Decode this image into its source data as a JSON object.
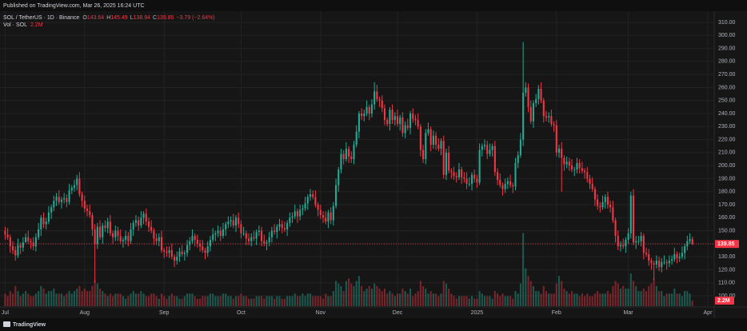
{
  "chart_data": {
    "type": "candlestick",
    "published": "Published on TradingView.com, Mar 26, 2025 16:24 UTC",
    "symbol_title": "SOL / TetherUS · 1D · Binance",
    "ohlc_letters": [
      "O",
      "H",
      "L",
      "C"
    ],
    "change": "−3.79 (−2.64%)",
    "volume_title": "Vol · SOL",
    "volume_value_label": "2.2M",
    "branding": "TradingView",
    "up_color": "#22ab94",
    "down_color": "#f23645",
    "grid": true,
    "xlim": [
      -2,
      276.5
    ],
    "xticks": [
      {
        "value": 0,
        "label": "Jul"
      },
      {
        "value": 31,
        "label": "Aug"
      },
      {
        "value": 62,
        "label": "Sep"
      },
      {
        "value": 92,
        "label": "Oct"
      },
      {
        "value": 123,
        "label": "Nov"
      },
      {
        "value": 153,
        "label": "Dec"
      },
      {
        "value": 184,
        "label": "2025"
      },
      {
        "value": 215,
        "label": "Feb"
      },
      {
        "value": 243,
        "label": "Mar"
      },
      {
        "value": 274,
        "label": "Apr"
      }
    ],
    "ylim": [
      92,
      318
    ],
    "yticks": [
      {
        "value": 100,
        "label": "100.00"
      },
      {
        "value": 110,
        "label": "110.00"
      },
      {
        "value": 120,
        "label": "120.00"
      },
      {
        "value": 130,
        "label": "130.00"
      },
      {
        "value": 140,
        "label": "140.00"
      },
      {
        "value": 150,
        "label": "150.00"
      },
      {
        "value": 160,
        "label": "160.00"
      },
      {
        "value": 170,
        "label": "170.00"
      },
      {
        "value": 180,
        "label": "180.00"
      },
      {
        "value": 190,
        "label": "190.00"
      },
      {
        "value": 200,
        "label": "200.00"
      },
      {
        "value": 210,
        "label": "210.00"
      },
      {
        "value": 220,
        "label": "220.00"
      },
      {
        "value": 230,
        "label": "230.00"
      },
      {
        "value": 240,
        "label": "240.00"
      },
      {
        "value": 250,
        "label": "250.00"
      },
      {
        "value": 260,
        "label": "260.00"
      },
      {
        "value": 270,
        "label": "270.00"
      },
      {
        "value": 280,
        "label": "280.00"
      },
      {
        "value": 290,
        "label": "290.00"
      },
      {
        "value": 300,
        "label": "300.00"
      },
      {
        "value": 310,
        "label": "310.00"
      }
    ],
    "volume_ylim": [
      0,
      35
    ],
    "open": [
      150,
      147,
      145,
      138,
      135,
      131,
      139,
      137,
      141,
      145,
      142,
      141,
      138,
      145,
      151,
      160,
      155,
      157,
      164,
      168,
      173,
      176,
      172,
      174,
      175,
      172,
      181,
      183,
      185,
      190,
      178,
      173,
      167,
      165,
      162,
      151,
      140,
      153,
      145,
      154,
      152,
      157,
      148,
      145,
      150,
      146,
      142,
      143,
      146,
      142,
      151,
      156,
      158,
      154,
      160,
      163,
      157,
      153,
      150,
      144,
      142,
      145,
      135,
      134,
      133,
      135,
      130,
      127,
      130,
      134,
      132,
      133,
      139,
      142,
      146,
      143,
      140,
      138,
      135,
      133,
      138,
      143,
      147,
      148,
      150,
      146,
      151,
      155,
      157,
      158,
      154,
      160,
      155,
      148,
      148,
      144,
      142,
      145,
      144,
      149,
      150,
      142,
      140,
      141,
      145,
      150,
      149,
      153,
      155,
      152,
      151,
      156,
      160,
      161,
      165,
      161,
      166,
      167,
      171,
      176,
      178,
      176,
      170,
      166,
      162,
      160,
      157,
      164,
      158,
      169,
      185,
      197,
      209,
      205,
      213,
      207,
      205,
      216,
      226,
      240,
      238,
      240,
      245,
      240,
      247,
      257,
      251,
      250,
      244,
      235,
      232,
      243,
      235,
      238,
      232,
      237,
      225,
      231,
      229,
      240,
      236,
      235,
      230,
      212,
      205,
      225,
      228,
      216,
      223,
      216,
      213,
      219,
      193,
      210,
      196,
      195,
      192,
      191,
      197,
      191,
      190,
      186,
      186,
      193,
      190,
      187,
      212,
      215,
      216,
      209,
      212,
      215,
      195,
      189,
      185,
      182,
      186,
      188,
      185,
      184,
      202,
      208,
      220,
      256,
      260,
      245,
      234,
      248,
      251,
      259,
      250,
      238,
      237,
      238,
      232,
      231,
      210,
      213,
      206,
      201,
      203,
      200,
      197,
      197,
      202,
      198,
      196,
      195,
      190,
      186,
      182,
      174,
      169,
      168,
      172,
      176,
      170,
      168,
      158,
      146,
      138,
      139,
      138,
      143,
      148,
      177,
      141,
      142,
      142,
      146,
      133,
      132,
      127,
      125,
      124,
      127,
      122,
      126,
      126,
      125,
      127,
      128,
      132,
      129,
      130,
      133,
      138,
      142,
      143.64
    ],
    "high": [
      153,
      152,
      147,
      142,
      138,
      144,
      141,
      145,
      148,
      150,
      144,
      145,
      148,
      156,
      162,
      164,
      160,
      169,
      170,
      177,
      179,
      181,
      176,
      179,
      178,
      186,
      185,
      189,
      193,
      195,
      180,
      177,
      170,
      170,
      164,
      155,
      156,
      158,
      156,
      158,
      160,
      162,
      150,
      154,
      153,
      151,
      145,
      150,
      149,
      156,
      158,
      162,
      161,
      165,
      165,
      167,
      160,
      158,
      152,
      148,
      148,
      150,
      137,
      138,
      138,
      140,
      132,
      134,
      137,
      139,
      135,
      143,
      145,
      151,
      148,
      147,
      143,
      143,
      137,
      142,
      146,
      152,
      150,
      154,
      153,
      156,
      157,
      161,
      161,
      163,
      162,
      164,
      158,
      153,
      150,
      148,
      148,
      150,
      151,
      154,
      153,
      147,
      143,
      149,
      153,
      155,
      155,
      159,
      158,
      157,
      158,
      164,
      164,
      170,
      167,
      170,
      170,
      176,
      178,
      182,
      181,
      181,
      172,
      170,
      165,
      165,
      166,
      168,
      172,
      190,
      199,
      213,
      212,
      218,
      215,
      211,
      219,
      231,
      242,
      244,
      243,
      250,
      247,
      251,
      264,
      262,
      253,
      254,
      247,
      237,
      245,
      247,
      241,
      243,
      239,
      241,
      234,
      236,
      242,
      244,
      239,
      240,
      232,
      216,
      228,
      233,
      230,
      227,
      226,
      221,
      221,
      223,
      213,
      215,
      198,
      199,
      195,
      202,
      199,
      195,
      195,
      191,
      195,
      197,
      193,
      217,
      217,
      220,
      219,
      217,
      217,
      219,
      198,
      194,
      187,
      190,
      191,
      193,
      187,
      206,
      211,
      225,
      295,
      264,
      263,
      250,
      250,
      255,
      262,
      264,
      252,
      242,
      241,
      243,
      234,
      235,
      216,
      218,
      208,
      207,
      206,
      205,
      199,
      206,
      205,
      203,
      198,
      199,
      193,
      191,
      184,
      178,
      172,
      177,
      178,
      180,
      173,
      173,
      160,
      150,
      142,
      144,
      145,
      152,
      180,
      182,
      146,
      146,
      149,
      148,
      137,
      136,
      129,
      127,
      131,
      130,
      129,
      131,
      128,
      131,
      131,
      137,
      134,
      133,
      138,
      140,
      146,
      148,
      145.49
    ],
    "low": [
      143,
      143,
      133,
      132,
      127,
      129,
      132,
      134,
      141,
      140,
      136,
      135,
      134,
      143,
      146,
      152,
      151,
      155,
      159,
      165,
      169,
      170,
      167,
      171,
      168,
      170,
      178,
      180,
      181,
      176,
      168,
      164,
      161,
      160,
      146,
      110,
      136,
      143,
      140,
      149,
      148,
      146,
      140,
      142,
      142,
      140,
      137,
      140,
      138,
      140,
      146,
      153,
      150,
      152,
      155,
      154,
      149,
      148,
      139,
      139,
      138,
      133,
      129,
      130,
      129,
      128,
      122,
      124,
      126,
      130,
      127,
      130,
      135,
      140,
      138,
      137,
      134,
      133,
      128,
      130,
      134,
      141,
      142,
      145,
      142,
      144,
      146,
      152,
      153,
      152,
      149,
      152,
      144,
      146,
      139,
      139,
      138,
      142,
      139,
      146,
      138,
      138,
      135,
      138,
      141,
      147,
      144,
      150,
      148,
      149,
      146,
      153,
      156,
      159,
      156,
      158,
      162,
      165,
      166,
      173,
      174,
      168,
      161,
      159,
      156,
      155,
      152,
      155,
      154,
      167,
      180,
      194,
      201,
      203,
      202,
      202,
      201,
      214,
      221,
      235,
      234,
      238,
      235,
      237,
      243,
      249,
      245,
      241,
      231,
      230,
      227,
      232,
      231,
      230,
      227,
      222,
      221,
      227,
      224,
      233,
      231,
      228,
      207,
      202,
      201,
      223,
      211,
      213,
      212,
      211,
      208,
      190,
      189,
      194,
      190,
      189,
      187,
      189,
      186,
      187,
      182,
      184,
      181,
      187,
      183,
      185,
      207,
      212,
      205,
      207,
      207,
      192,
      185,
      183,
      177,
      179,
      182,
      183,
      179,
      181,
      198,
      206,
      215,
      253,
      241,
      232,
      229,
      245,
      247,
      248,
      233,
      234,
      233,
      230,
      226,
      207,
      206,
      180,
      196,
      198,
      196,
      195,
      192,
      194,
      194,
      194,
      190,
      187,
      182,
      180,
      169,
      166,
      164,
      166,
      167,
      167,
      164,
      156,
      141,
      135,
      134,
      136,
      133,
      140,
      144,
      139,
      136,
      139,
      138,
      128,
      130,
      123,
      120,
      112,
      121,
      119,
      118,
      124,
      120,
      122,
      124,
      126,
      125,
      126,
      128,
      128,
      135,
      140,
      138.94
    ],
    "close": [
      147,
      145,
      138,
      135,
      131,
      139,
      137,
      141,
      145,
      142,
      141,
      138,
      145,
      151,
      160,
      155,
      157,
      164,
      168,
      173,
      176,
      172,
      174,
      175,
      172,
      181,
      183,
      185,
      190,
      178,
      173,
      167,
      165,
      162,
      151,
      140,
      153,
      145,
      154,
      152,
      157,
      148,
      145,
      150,
      146,
      142,
      143,
      146,
      142,
      151,
      156,
      158,
      154,
      160,
      163,
      157,
      153,
      150,
      144,
      142,
      145,
      135,
      134,
      133,
      135,
      130,
      127,
      130,
      134,
      132,
      133,
      139,
      142,
      146,
      143,
      140,
      138,
      135,
      133,
      138,
      143,
      147,
      148,
      150,
      146,
      151,
      155,
      157,
      158,
      154,
      160,
      155,
      148,
      148,
      144,
      142,
      145,
      144,
      149,
      150,
      142,
      140,
      141,
      145,
      150,
      149,
      153,
      155,
      152,
      151,
      156,
      160,
      161,
      165,
      161,
      166,
      167,
      171,
      176,
      178,
      176,
      170,
      166,
      162,
      160,
      157,
      164,
      158,
      169,
      185,
      197,
      209,
      205,
      213,
      207,
      205,
      216,
      226,
      240,
      238,
      240,
      245,
      240,
      247,
      257,
      251,
      250,
      244,
      235,
      232,
      243,
      235,
      238,
      232,
      237,
      225,
      231,
      229,
      240,
      236,
      235,
      230,
      212,
      205,
      225,
      228,
      216,
      223,
      216,
      213,
      219,
      193,
      210,
      196,
      195,
      192,
      191,
      197,
      191,
      190,
      186,
      186,
      193,
      190,
      187,
      212,
      215,
      216,
      209,
      212,
      215,
      195,
      189,
      185,
      182,
      186,
      188,
      185,
      184,
      202,
      208,
      220,
      256,
      260,
      245,
      234,
      248,
      251,
      259,
      250,
      238,
      237,
      238,
      232,
      231,
      210,
      213,
      206,
      201,
      203,
      200,
      197,
      197,
      202,
      198,
      196,
      195,
      190,
      186,
      182,
      174,
      169,
      168,
      172,
      176,
      170,
      168,
      158,
      146,
      138,
      139,
      138,
      143,
      148,
      177,
      141,
      142,
      142,
      146,
      133,
      132,
      127,
      125,
      124,
      127,
      122,
      126,
      126,
      125,
      127,
      128,
      132,
      129,
      130,
      133,
      138,
      142,
      143.64,
      139.85
    ],
    "volume": [
      5,
      4,
      6,
      5,
      8,
      6,
      4,
      5,
      6,
      5,
      4,
      4,
      5,
      6,
      8,
      7,
      5,
      6,
      6,
      7,
      5,
      5,
      5,
      4,
      5,
      6,
      5,
      6,
      7,
      8,
      6,
      7,
      6,
      6,
      8,
      10.5,
      9,
      7,
      6,
      5,
      4,
      5,
      4,
      5,
      5,
      5,
      4,
      3,
      4,
      5,
      6,
      5,
      5,
      6,
      5,
      4,
      4,
      5,
      5,
      4,
      3,
      5,
      4,
      3,
      4,
      5,
      4,
      4,
      3,
      3,
      4,
      5,
      5,
      5,
      4,
      3,
      3,
      4,
      4,
      4,
      5,
      5,
      4,
      4,
      4,
      5,
      5,
      4,
      4,
      3,
      4,
      4,
      5,
      4,
      4,
      3,
      3,
      3,
      4,
      4,
      4,
      3,
      4,
      4,
      4,
      3,
      4,
      4,
      3,
      3,
      4,
      4,
      4,
      5,
      4,
      4,
      5,
      4,
      5,
      5,
      4,
      4,
      4,
      4,
      3,
      5,
      4,
      4,
      6,
      10,
      9,
      8,
      6,
      10,
      11,
      9,
      8,
      10,
      12,
      8,
      6,
      7,
      8,
      7,
      9,
      8,
      7,
      6,
      7,
      5,
      6,
      5,
      4,
      5,
      5,
      7,
      6,
      5,
      7,
      4,
      5,
      6,
      10,
      8,
      7,
      5,
      6,
      5,
      5,
      4,
      5,
      10,
      9,
      7,
      5,
      4,
      3,
      4,
      4,
      4,
      4,
      3,
      4,
      3,
      3,
      6,
      5,
      4,
      4,
      4,
      3,
      6,
      5,
      4,
      5,
      4,
      4,
      4,
      3,
      6,
      5,
      9,
      29,
      15,
      12,
      10,
      8,
      6,
      6,
      5,
      8,
      6,
      5,
      5,
      5,
      9,
      12,
      10,
      7,
      6,
      5,
      6,
      5,
      5,
      4,
      5,
      4,
      5,
      4,
      4,
      5,
      6,
      5,
      5,
      5,
      6,
      5,
      8,
      10,
      9,
      7,
      8,
      7,
      7,
      13,
      10,
      8,
      6,
      6,
      7,
      6,
      8,
      9,
      11,
      8,
      6,
      6,
      4,
      5,
      5,
      5,
      7,
      5,
      5,
      4,
      6,
      6,
      5,
      2.2
    ]
  }
}
